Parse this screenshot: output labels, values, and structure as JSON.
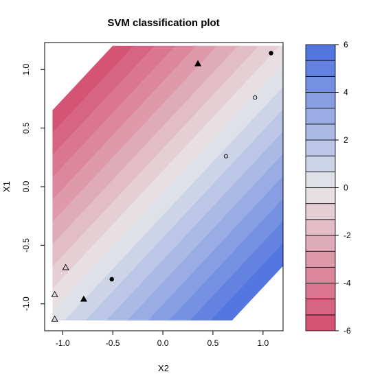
{
  "chart_data": {
    "type": "contour",
    "title": "SVM classification plot",
    "xlabel": "X2",
    "ylabel": "X1",
    "xlim": [
      -1.18,
      1.2
    ],
    "ylim": [
      -1.23,
      1.23
    ],
    "data_extent": {
      "x": [
        -1.1,
        1.2
      ],
      "y": [
        -1.14,
        1.2
      ]
    },
    "x_ticks": [
      -1.0,
      -0.5,
      0.0,
      0.5,
      1.0
    ],
    "x_tick_labels": [
      "-1.0",
      "-0.5",
      "0.0",
      "0.5",
      "1.0"
    ],
    "y_ticks": [
      -1.0,
      -0.5,
      0.0,
      0.5,
      1.0
    ],
    "y_tick_labels": [
      "-1.0",
      "-0.5",
      "0.0",
      "0.5",
      "1.0"
    ],
    "decision_function": {
      "intercept": -0.2,
      "coef_x2": 3.2,
      "coef_x1": -3.5
    },
    "colorbar": {
      "range": [
        -6,
        6
      ],
      "levels": 18,
      "ticks": [
        -6,
        -4,
        -2,
        0,
        2,
        4,
        6
      ],
      "tick_labels": [
        "-6",
        "-4",
        "-2",
        "0",
        "2",
        "4",
        "6"
      ],
      "low_color": "#d44a6e",
      "mid_color": "#e8e8e8",
      "high_color": "#4a6fe0"
    },
    "points": [
      {
        "x2": 1.08,
        "x1": 1.14,
        "shape": "circle",
        "filled": true
      },
      {
        "x2": 0.92,
        "x1": 0.76,
        "shape": "circle",
        "filled": false
      },
      {
        "x2": 0.63,
        "x1": 0.26,
        "shape": "circle",
        "filled": false
      },
      {
        "x2": -0.51,
        "x1": -0.79,
        "shape": "circle",
        "filled": true
      },
      {
        "x2": 0.35,
        "x1": 1.05,
        "shape": "triangle",
        "filled": true
      },
      {
        "x2": -0.79,
        "x1": -0.96,
        "shape": "triangle",
        "filled": true
      },
      {
        "x2": -0.97,
        "x1": -0.69,
        "shape": "triangle",
        "filled": false
      },
      {
        "x2": -1.08,
        "x1": -0.92,
        "shape": "triangle",
        "filled": false
      },
      {
        "x2": -1.08,
        "x1": -1.13,
        "shape": "triangle",
        "filled": false
      }
    ]
  }
}
